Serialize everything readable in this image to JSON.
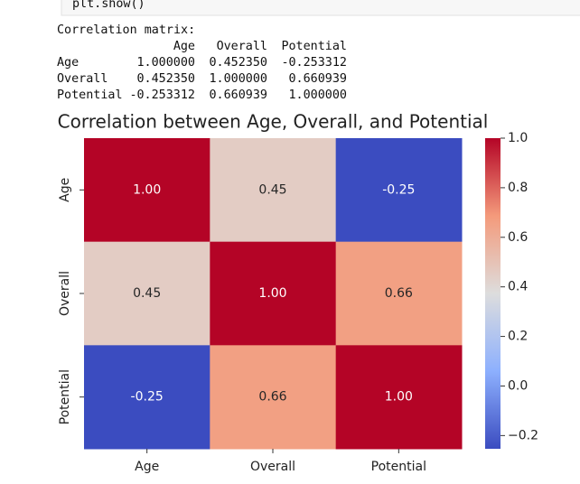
{
  "code_cell": {
    "source": "plt.show()"
  },
  "console_output": {
    "title": "Correlation matrix:",
    "columns": [
      "Age",
      "Overall",
      "Potential"
    ],
    "rows": [
      {
        "label": "Age",
        "values": [
          "1.000000",
          "0.452350",
          "-0.253312"
        ]
      },
      {
        "label": "Overall",
        "values": [
          "0.452350",
          "1.000000",
          "0.660939"
        ]
      },
      {
        "label": "Potential",
        "values": [
          "-0.253312",
          "0.660939",
          "1.000000"
        ]
      }
    ]
  },
  "chart_data": {
    "type": "heatmap",
    "title": "Correlation between Age, Overall, and Potential",
    "x_categories": [
      "Age",
      "Overall",
      "Potential"
    ],
    "y_categories": [
      "Age",
      "Overall",
      "Potential"
    ],
    "values": [
      [
        1.0,
        0.45235,
        -0.253312
      ],
      [
        0.45235,
        1.0,
        0.660939
      ],
      [
        -0.253312,
        0.660939,
        1.0
      ]
    ],
    "value_labels": [
      [
        "1.00",
        "0.45",
        "-0.25"
      ],
      [
        "0.45",
        "1.00",
        "0.66"
      ],
      [
        "-0.25",
        "0.66",
        "1.00"
      ]
    ],
    "colormap": [
      "#3b4cc0",
      "#8db0fe",
      "#dddddd",
      "#f49a7b",
      "#b40426"
    ],
    "clim": [
      -0.253312,
      1.0
    ],
    "cticks": [
      {
        "value": 1,
        "label": "1.0"
      },
      0.8,
      0.6,
      0.4,
      0.2,
      {
        "value": 0,
        "label": "0.0"
      },
      {
        "value": -0.2,
        "label": "−0.2"
      }
    ]
  }
}
